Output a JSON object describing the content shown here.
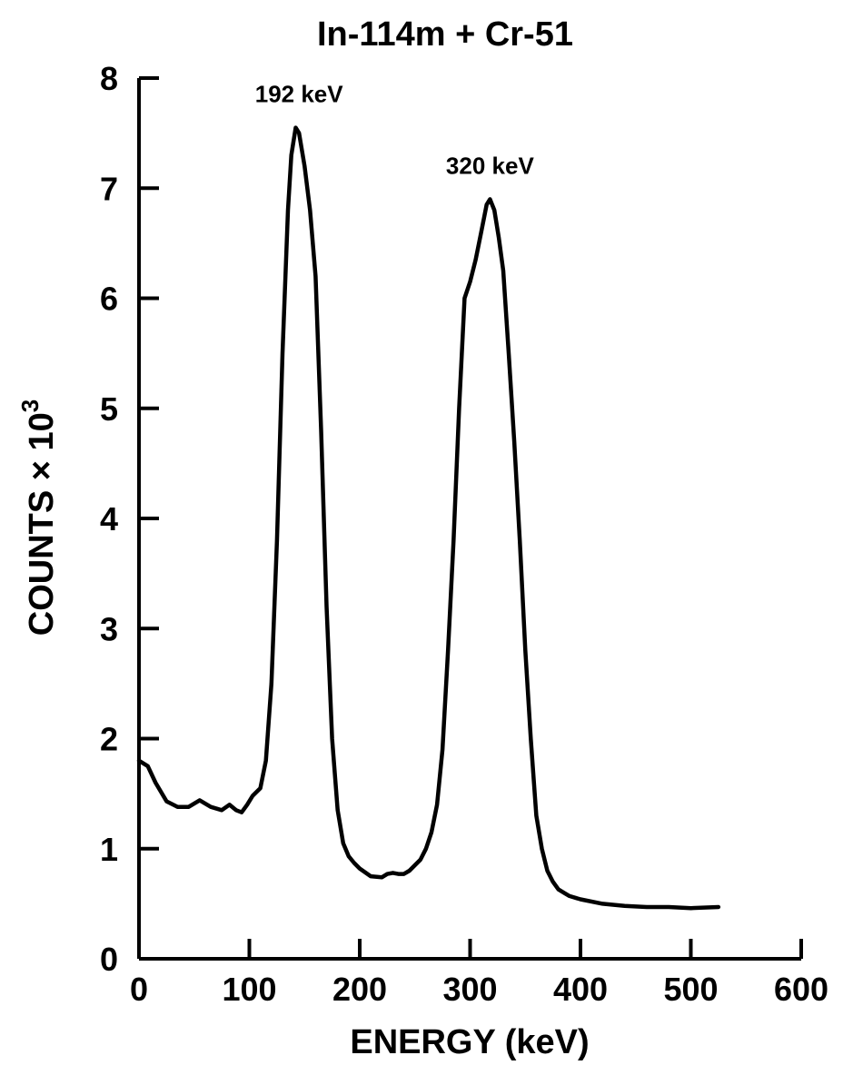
{
  "chart_data": {
    "type": "line",
    "title": "In-114m + Cr-51",
    "xlabel": "ENERGY (keV)",
    "ylabel": "COUNTS × 10",
    "ylabel_superscript": "3",
    "xlim": [
      0,
      600
    ],
    "ylim": [
      0,
      8
    ],
    "x_ticks": [
      0,
      100,
      200,
      300,
      400,
      500,
      600
    ],
    "y_ticks": [
      0,
      1,
      2,
      3,
      4,
      5,
      6,
      7,
      8
    ],
    "grid": false,
    "annotations": [
      {
        "text": "192 keV",
        "x": 145,
        "y": 7.55
      },
      {
        "text": "320 keV",
        "x": 318,
        "y": 6.9
      }
    ],
    "series": [
      {
        "x": [
          0,
          8,
          15,
          25,
          35,
          45,
          55,
          65,
          75,
          82,
          88,
          93,
          98,
          103,
          110,
          115,
          120,
          125,
          130,
          135,
          138,
          142,
          145,
          150,
          155,
          160,
          165,
          170,
          175,
          180,
          185,
          190,
          195,
          200,
          210,
          220,
          225,
          230,
          235,
          240,
          245,
          250,
          255,
          260,
          265,
          270,
          275,
          280,
          285,
          290,
          295,
          300,
          305,
          310,
          315,
          318,
          322,
          326,
          330,
          335,
          340,
          345,
          350,
          355,
          360,
          365,
          370,
          375,
          380,
          385,
          390,
          400,
          420,
          440,
          460,
          480,
          500,
          525
        ],
        "y": [
          1.8,
          1.75,
          1.6,
          1.43,
          1.38,
          1.38,
          1.44,
          1.38,
          1.35,
          1.4,
          1.35,
          1.33,
          1.4,
          1.48,
          1.55,
          1.8,
          2.5,
          3.8,
          5.5,
          6.8,
          7.3,
          7.55,
          7.5,
          7.2,
          6.8,
          6.2,
          4.8,
          3.2,
          2.0,
          1.35,
          1.05,
          0.93,
          0.87,
          0.82,
          0.75,
          0.74,
          0.77,
          0.78,
          0.77,
          0.77,
          0.8,
          0.85,
          0.9,
          1.0,
          1.15,
          1.4,
          1.9,
          2.8,
          3.8,
          5.0,
          6.0,
          6.15,
          6.35,
          6.6,
          6.85,
          6.9,
          6.8,
          6.55,
          6.25,
          5.5,
          4.7,
          3.8,
          2.8,
          2.0,
          1.3,
          1.0,
          0.8,
          0.7,
          0.63,
          0.6,
          0.57,
          0.54,
          0.5,
          0.48,
          0.47,
          0.47,
          0.46,
          0.47
        ]
      }
    ]
  }
}
